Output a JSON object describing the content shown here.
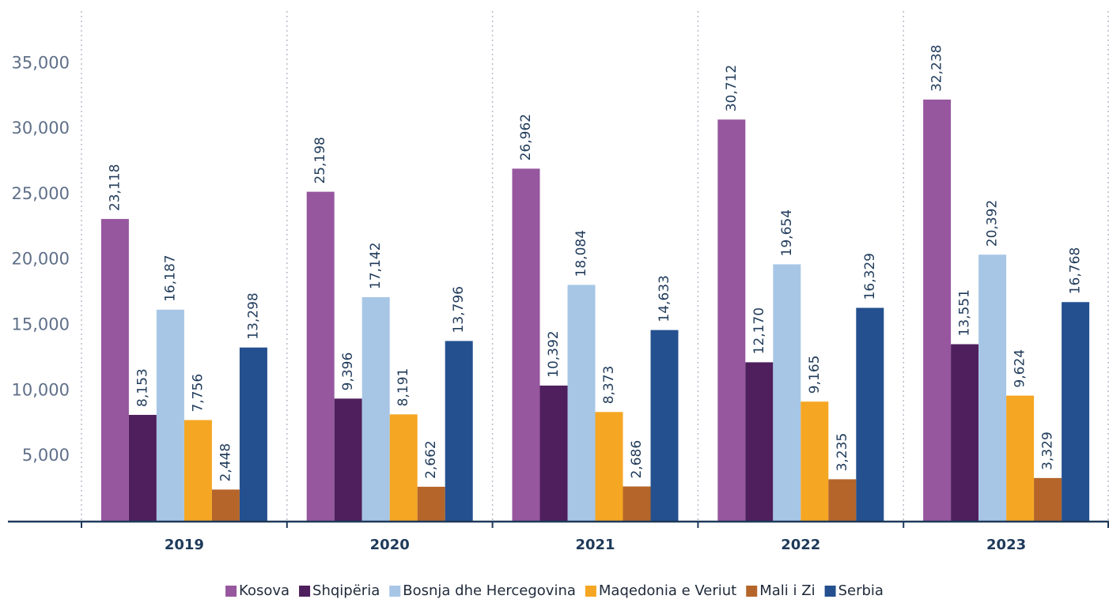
{
  "chart_data": {
    "type": "bar",
    "categories": [
      "2019",
      "2020",
      "2021",
      "2022",
      "2023"
    ],
    "series": [
      {
        "name": "Kosova",
        "color": "#96579e",
        "values": [
          23118,
          25198,
          26962,
          30712,
          32238
        ],
        "value_labels": [
          "23,118",
          "25,198",
          "26,962",
          "30,712",
          "32,238"
        ]
      },
      {
        "name": "Shqipëria",
        "color": "#4e1f5c",
        "values": [
          8153,
          9396,
          10392,
          12170,
          13551
        ],
        "value_labels": [
          "8,153",
          "9,396",
          "10,392",
          "12,170",
          "13,551"
        ]
      },
      {
        "name": "Bosnja dhe Hercegovina",
        "color": "#a7c6e6",
        "values": [
          16187,
          17142,
          18084,
          19654,
          20392
        ],
        "value_labels": [
          "16,187",
          "17,142",
          "18,084",
          "19,654",
          "20,392"
        ]
      },
      {
        "name": "Maqedonia e Veriut",
        "color": "#f5a623",
        "values": [
          7756,
          8191,
          8373,
          9165,
          9624
        ],
        "value_labels": [
          "7,756",
          "8,191",
          "8,373",
          "9,165",
          "9,624"
        ]
      },
      {
        "name": "Mali i Zi",
        "color": "#b5652a",
        "values": [
          2448,
          2662,
          2686,
          3235,
          3329
        ],
        "value_labels": [
          "2,448",
          "2,662",
          "2,686",
          "3,235",
          "3,329"
        ]
      },
      {
        "name": "Serbia",
        "color": "#24508f",
        "values": [
          13298,
          13796,
          14633,
          16329,
          16768
        ],
        "value_labels": [
          "13,298",
          "13,796",
          "14,633",
          "16,329",
          "16,768"
        ]
      }
    ],
    "ylim": [
      0,
      39000
    ],
    "yticks": [
      {
        "value": 5000,
        "label": "5,000"
      },
      {
        "value": 10000,
        "label": "10,000"
      },
      {
        "value": 15000,
        "label": "15,000"
      },
      {
        "value": 20000,
        "label": "20,000"
      },
      {
        "value": 25000,
        "label": "25,000"
      },
      {
        "value": 30000,
        "label": "30,000"
      },
      {
        "value": 35000,
        "label": "35,000"
      }
    ],
    "legend": "bottom"
  }
}
